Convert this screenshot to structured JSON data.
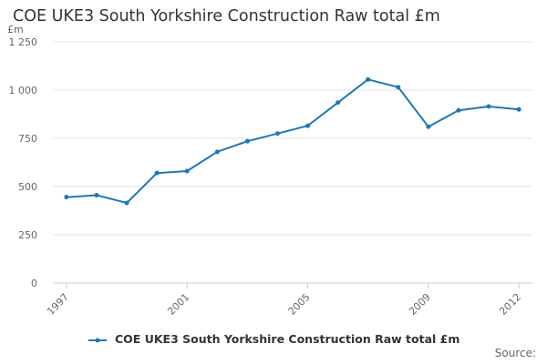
{
  "chart_data": {
    "type": "line",
    "title": "COE UKE3 South Yorkshire Construction Raw total £m",
    "ylabel": "£m",
    "xlabel": "",
    "x": [
      1997,
      1998,
      1999,
      2000,
      2001,
      2002,
      2003,
      2004,
      2005,
      2006,
      2007,
      2008,
      2009,
      2010,
      2011,
      2012
    ],
    "x_tick_labels": [
      "1997",
      "2001",
      "2005",
      "2009",
      "2012"
    ],
    "y_tick_labels": [
      "0",
      "250",
      "500",
      "750",
      "1 000",
      "1 250"
    ],
    "ylim": [
      0,
      1250
    ],
    "series": [
      {
        "name": "COE UKE3 South Yorkshire Construction Raw total £m",
        "color": "#1f78b4",
        "values": [
          445,
          455,
          415,
          570,
          580,
          680,
          735,
          775,
          815,
          935,
          1055,
          1015,
          810,
          895,
          915,
          900
        ]
      }
    ],
    "grid": true,
    "legend": "bottom-center"
  },
  "source_label": "Source:"
}
